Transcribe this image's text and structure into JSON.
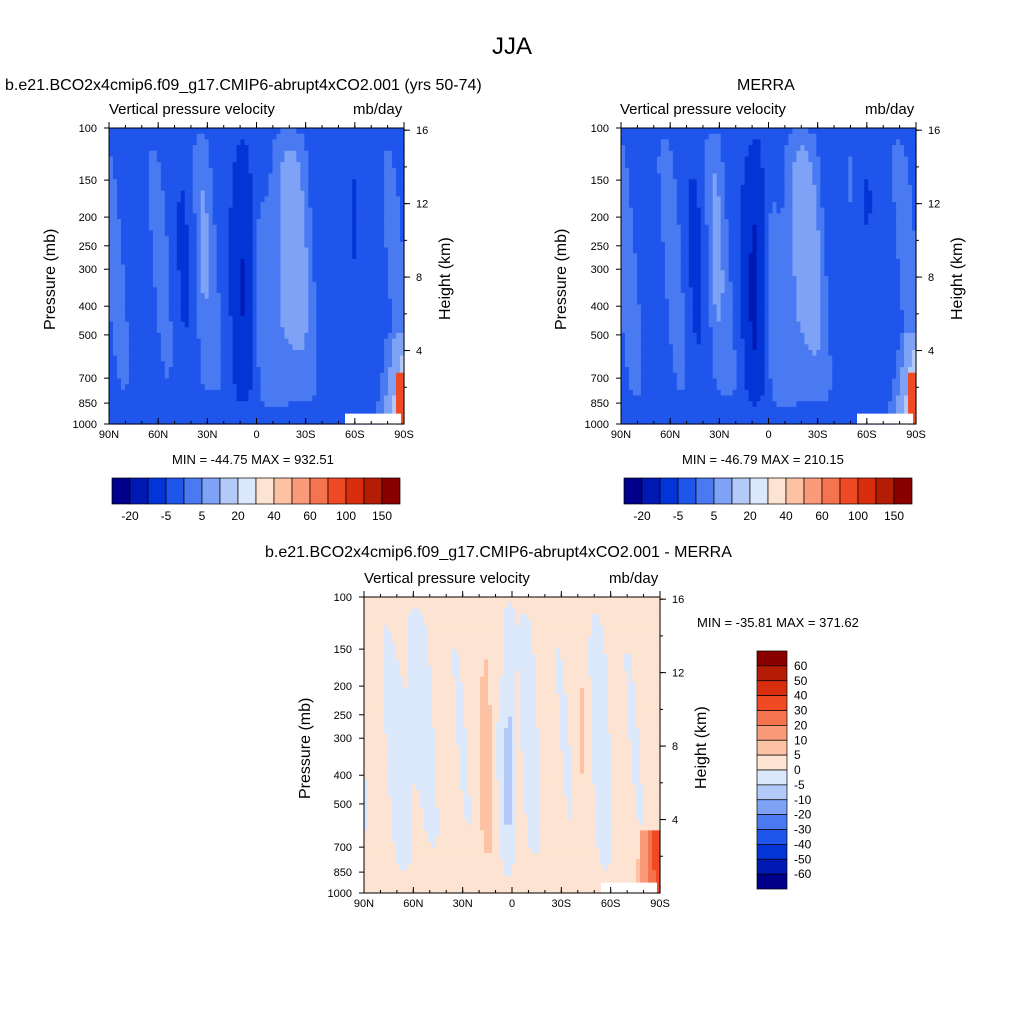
{
  "page": {
    "title": "JJA"
  },
  "chart_data": [
    {
      "type": "heatmap",
      "id": "model",
      "title": "b.e21.BCO2x4cmip6.f09_g17.CMIP6-abrupt4xCO2.001 (yrs 50-74)",
      "variable": "Vertical pressure velocity",
      "units": "mb/day",
      "ylabel": "Pressure (mb)",
      "y2label": "Height (km)",
      "x_ticks": [
        "90N",
        "60N",
        "30N",
        "0",
        "30S",
        "60S",
        "90S"
      ],
      "y_ticks": [
        "100",
        "150",
        "200",
        "250",
        "300",
        "400",
        "500",
        "700",
        "850",
        "1000"
      ],
      "y2_ticks": [
        "16",
        "12",
        "8",
        "4"
      ],
      "stats": "MIN = -44.75  MAX = 932.51",
      "colorbar": {
        "orientation": "horizontal",
        "labels": [
          "-20",
          "-5",
          "5",
          "20",
          "40",
          "60",
          "100",
          "150"
        ]
      }
    },
    {
      "type": "heatmap",
      "id": "merra",
      "title": "MERRA",
      "variable": "Vertical pressure velocity",
      "units": "mb/day",
      "ylabel": "Pressure (mb)",
      "y2label": "Height (km)",
      "x_ticks": [
        "90N",
        "60N",
        "30N",
        "0",
        "30S",
        "60S",
        "90S"
      ],
      "y_ticks": [
        "100",
        "150",
        "200",
        "250",
        "300",
        "400",
        "500",
        "700",
        "850",
        "1000"
      ],
      "y2_ticks": [
        "16",
        "12",
        "8",
        "4"
      ],
      "stats": "MIN = -46.79  MAX = 210.15",
      "colorbar": {
        "orientation": "horizontal",
        "labels": [
          "-20",
          "-5",
          "5",
          "20",
          "40",
          "60",
          "100",
          "150"
        ]
      }
    },
    {
      "type": "heatmap",
      "id": "diff",
      "title": "b.e21.BCO2x4cmip6.f09_g17.CMIP6-abrupt4xCO2.001 - MERRA",
      "variable": "Vertical pressure velocity",
      "units": "mb/day",
      "ylabel": "Pressure (mb)",
      "y2label": "Height (km)",
      "x_ticks": [
        "90N",
        "60N",
        "30N",
        "0",
        "30S",
        "60S",
        "90S"
      ],
      "y_ticks": [
        "100",
        "150",
        "200",
        "250",
        "300",
        "400",
        "500",
        "700",
        "850",
        "1000"
      ],
      "y2_ticks": [
        "16",
        "12",
        "8",
        "4"
      ],
      "stats": "MIN = -35.81  MAX = 371.62",
      "colorbar": {
        "orientation": "vertical",
        "labels": [
          "60",
          "50",
          "40",
          "30",
          "20",
          "10",
          "5",
          "0",
          "-5",
          "-10",
          "-20",
          "-30",
          "-40",
          "-50",
          "-60"
        ]
      }
    }
  ],
  "colors": {
    "abs_scale": [
      "#00008a",
      "#0019b5",
      "#0335d6",
      "#1e55eb",
      "#4a7af2",
      "#7ea2f5",
      "#b3c9f7",
      "#dce8fb",
      "#fde3d1",
      "#fcc2a3",
      "#f99b78",
      "#f5734f",
      "#ef4a23",
      "#d92e0e",
      "#b51c06",
      "#8a0000"
    ],
    "diff_scale": [
      "#8a0000",
      "#b51c06",
      "#d92e0e",
      "#ef4a23",
      "#f5734f",
      "#f99b78",
      "#fcc2a3",
      "#fde3d1",
      "#dce8fb",
      "#b3c9f7",
      "#7ea2f5",
      "#4a7af2",
      "#1e55eb",
      "#0335d6",
      "#0019b5",
      "#00008a"
    ]
  }
}
